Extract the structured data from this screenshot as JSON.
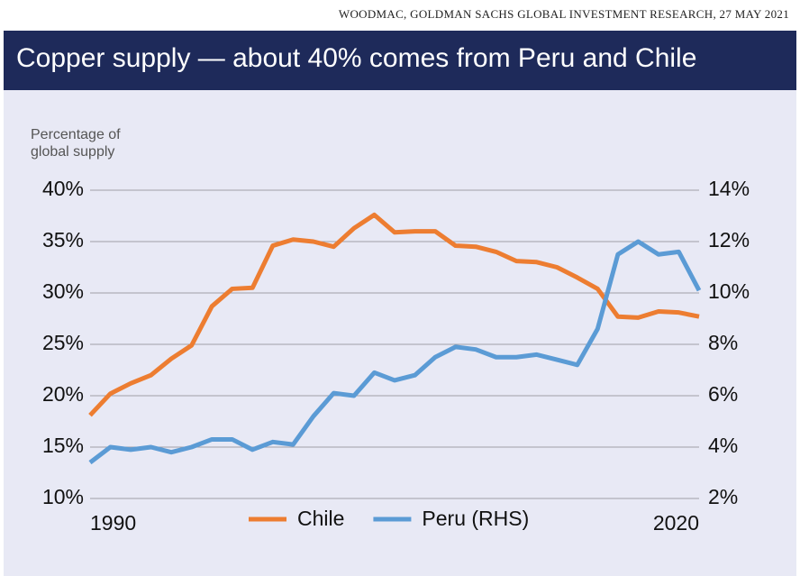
{
  "source": "WOODMAC, GOLDMAN SACHS GLOBAL INVESTMENT RESEARCH, 27 MAY 2021",
  "chart_data": {
    "type": "line",
    "title": "Copper supply — about 40% comes from Peru and Chile",
    "y_label": "Percentage of global supply",
    "x": [
      1990,
      1991,
      1992,
      1993,
      1994,
      1995,
      1996,
      1997,
      1998,
      1999,
      2000,
      2001,
      2002,
      2003,
      2004,
      2005,
      2006,
      2007,
      2008,
      2009,
      2010,
      2011,
      2012,
      2013,
      2014,
      2015,
      2016,
      2017,
      2018,
      2019,
      2020
    ],
    "xlim": [
      1990,
      2020
    ],
    "xticks": [
      1990,
      2020
    ],
    "ylim": [
      10,
      40
    ],
    "yticks": [
      {
        "value": 10,
        "label": "10%"
      },
      {
        "value": 15,
        "label": "15%"
      },
      {
        "value": 20,
        "label": "20%"
      },
      {
        "value": 25,
        "label": "25%"
      },
      {
        "value": 30,
        "label": "30%"
      },
      {
        "value": 35,
        "label": "35%"
      },
      {
        "value": 40,
        "label": "40%"
      }
    ],
    "y2lim": [
      2,
      14
    ],
    "y2ticks": [
      {
        "value": 2,
        "label": "2%"
      },
      {
        "value": 4,
        "label": "4%"
      },
      {
        "value": 6,
        "label": "6%"
      },
      {
        "value": 8,
        "label": "8%"
      },
      {
        "value": 10,
        "label": "10%"
      },
      {
        "value": 12,
        "label": "12%"
      },
      {
        "value": 14,
        "label": "14%"
      }
    ],
    "grid": true,
    "legend": "bottom",
    "series": [
      {
        "name": "Chile",
        "color": "#ed7d31",
        "values": [
          18.1,
          20.2,
          21.2,
          22.0,
          23.6,
          24.9,
          28.7,
          30.4,
          30.5,
          34.6,
          35.2,
          35.0,
          34.5,
          36.3,
          37.6,
          35.9,
          36.0,
          36.0,
          34.6,
          34.5,
          34.0,
          33.1,
          33.0,
          32.5,
          31.5,
          30.4,
          27.7,
          27.6,
          28.2,
          28.1,
          27.7
        ]
      },
      {
        "name": "Peru (RHS)",
        "color": "#5b9bd5",
        "axis": "y2",
        "values": [
          3.4,
          4.0,
          3.9,
          4.0,
          3.8,
          4.0,
          4.3,
          4.3,
          3.9,
          4.2,
          4.1,
          5.2,
          6.1,
          6.0,
          6.9,
          6.6,
          6.8,
          7.5,
          7.9,
          7.8,
          7.5,
          7.5,
          7.6,
          7.4,
          7.2,
          8.6,
          11.5,
          12.0,
          11.5,
          11.6,
          10.1
        ]
      }
    ]
  }
}
